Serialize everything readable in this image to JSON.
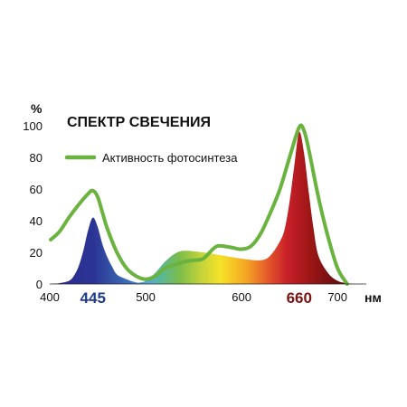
{
  "chart_data": {
    "type": "area",
    "title": "СПЕКТР СВЕЧЕНИЯ",
    "ylabel": "%",
    "xlabel": "нм",
    "xlim": [
      400,
      730
    ],
    "ylim": [
      0,
      100
    ],
    "y_ticks": [
      "0",
      "20",
      "40",
      "60",
      "80",
      "100"
    ],
    "x_ticks": [
      "400",
      "500",
      "600",
      "700"
    ],
    "peak_labels": [
      {
        "text": "445",
        "x": 445,
        "color": "#1f3a8a"
      },
      {
        "text": "660",
        "x": 660,
        "color": "#7a1414"
      }
    ],
    "grid": false,
    "legend_position": "top-left",
    "series": [
      {
        "kind": "area",
        "x": [
          400,
          410,
          420,
          425,
          430,
          435,
          440,
          445,
          450,
          455,
          460,
          465,
          470,
          480,
          490,
          495,
          500,
          510,
          520,
          530,
          540,
          560,
          580,
          600,
          620,
          630,
          640,
          645,
          650,
          655,
          660,
          665,
          670,
          675,
          680,
          690,
          700,
          710,
          720,
          730
        ],
        "values": [
          0,
          0.5,
          2,
          5,
          11,
          21,
          34,
          42,
          36,
          25,
          17,
          11,
          6,
          3,
          1,
          1,
          2,
          7,
          14,
          19,
          21,
          20,
          18,
          16,
          15,
          18,
          27,
          35,
          52,
          75,
          96,
          83,
          58,
          35,
          18,
          7,
          2,
          0.5,
          0,
          0
        ]
      },
      {
        "name": "Активность фотосинтеза",
        "kind": "line",
        "color": "#6ab33f",
        "x": [
          401,
          410,
          420,
          430,
          440,
          445,
          450,
          455,
          460,
          470,
          480,
          490,
          500,
          510,
          520,
          530,
          540,
          550,
          560,
          570,
          575,
          580,
          590,
          600,
          610,
          620,
          630,
          640,
          650,
          660,
          665,
          670,
          680,
          690,
          700,
          710
        ],
        "values": [
          28,
          33,
          42,
          50,
          57,
          59,
          55,
          45,
          35,
          20,
          10,
          5,
          3,
          5,
          10,
          12,
          14,
          15,
          16,
          22,
          24,
          24,
          23,
          22,
          24,
          32,
          45,
          60,
          80,
          99,
          97,
          85,
          55,
          30,
          10,
          0
        ]
      }
    ]
  }
}
